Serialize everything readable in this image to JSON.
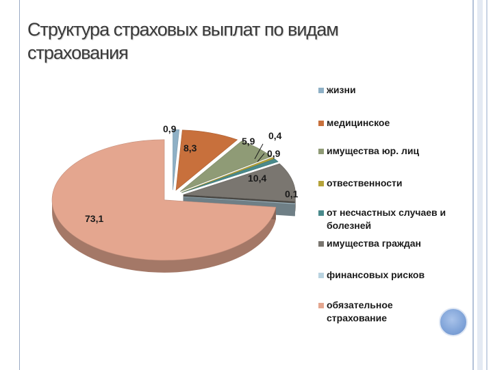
{
  "title": {
    "line1": "Структура страховых выплат по видам",
    "line2": "страхования"
  },
  "chart_data": {
    "type": "pie",
    "title": "Структура страховых выплат по видам страхования",
    "categories": [
      "жизни",
      "медицинское",
      "имущества юр. лиц",
      "отвественности",
      "от несчастных случаев и болезней",
      "имущества граждан",
      "финансовых рисков",
      "обязательное страхование"
    ],
    "values": [
      0.9,
      8.3,
      5.9,
      0.4,
      0.9,
      10.4,
      0.1,
      73.1
    ],
    "data_labels": [
      "0,9",
      "8,3",
      "5,9",
      "0,4",
      "0,9",
      "10,4",
      "0,1",
      "73,1"
    ],
    "colors": [
      "#8eb0c6",
      "#c8703c",
      "#8f9b76",
      "#b5a33a",
      "#4a8a8c",
      "#7a7670",
      "#b9d3e0",
      "#e4a68f"
    ],
    "legend_position": "right",
    "exploded": true,
    "three_d": true
  }
}
